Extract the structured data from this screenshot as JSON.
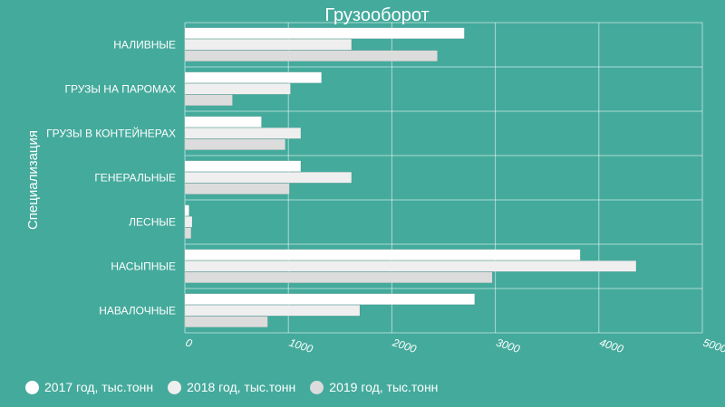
{
  "chart_data": {
    "type": "bar",
    "orientation": "horizontal",
    "title": "Грузооборот",
    "ylabel": "Специализация",
    "xlabel": "",
    "categories": [
      "НАЛИВНЫЕ",
      "ГРУЗЫ НА ПАРОМАХ",
      "ГРУЗЫ В КОНТЕЙНЕРАХ",
      "ГЕНЕРАЛЬНЫЕ",
      "ЛЕСНЫЕ",
      "НАСЫПНЫЕ",
      "НАВАЛОЧНЫЕ"
    ],
    "series": [
      {
        "name": "2017 год, тыс.тонн",
        "color": "#ffffff",
        "values": [
          2700,
          1320,
          740,
          1120,
          40,
          3820,
          2800
        ]
      },
      {
        "name": "2018 год, тыс.тонн",
        "color": "#efefef",
        "values": [
          1610,
          1020,
          1120,
          1610,
          70,
          4360,
          1690
        ]
      },
      {
        "name": "2019 год, тыс.тонн",
        "color": "#dcdcdc",
        "values": [
          2440,
          460,
          970,
          1010,
          60,
          2970,
          800
        ]
      }
    ],
    "xticks": [
      "0",
      "1000",
      "2000",
      "3000",
      "4000",
      "5000"
    ],
    "xlim": [
      0,
      5000
    ],
    "grid": true,
    "legend_position": "bottom-left"
  }
}
